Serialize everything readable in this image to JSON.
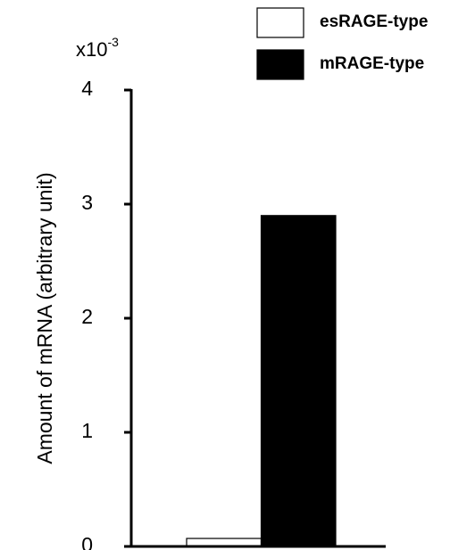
{
  "chart_data": {
    "type": "bar",
    "y_label": "Amount of mRNA (arbitrary unit)",
    "y_multiplier": {
      "base": "x10",
      "exponent": "-3"
    },
    "categories": [
      null
    ],
    "series": [
      {
        "name": "esRAGE-type",
        "color": "#ffffff",
        "values": [
          0.07
        ]
      },
      {
        "name": "mRAGE-type",
        "color": "#000000",
        "values": [
          2.9
        ]
      }
    ],
    "ylim": [
      0,
      4
    ],
    "yticks": [
      0,
      1,
      2,
      3,
      4
    ],
    "legend": "top-right"
  }
}
